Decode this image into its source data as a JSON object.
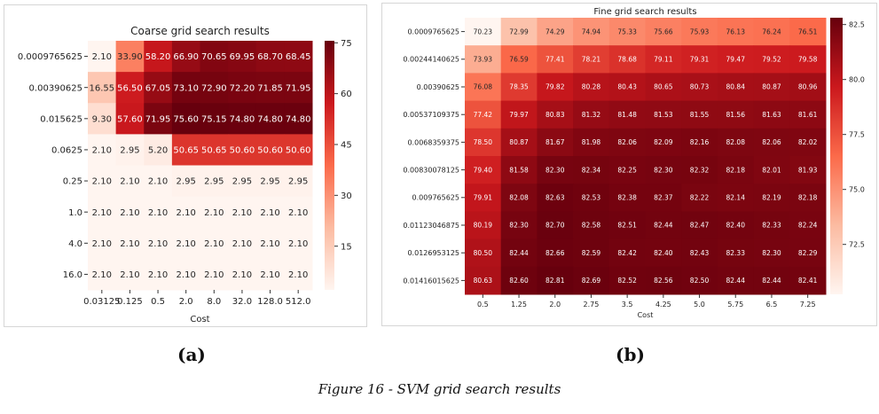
{
  "chart_data": [
    {
      "type": "heatmap",
      "title": "Coarse grid search results",
      "xlabel": "Cost",
      "ylabel": "",
      "x": [
        "0.03125",
        "0.125",
        "0.5",
        "2.0",
        "8.0",
        "32.0",
        "128.0",
        "512.0"
      ],
      "y": [
        "0.0009765625",
        "0.00390625",
        "0.015625",
        "0.0625",
        "0.25",
        "1.0",
        "4.0",
        "16.0"
      ],
      "values": [
        [
          "2.10",
          "33.90",
          "58.20",
          "66.90",
          "70.65",
          "69.95",
          "68.70",
          "68.45"
        ],
        [
          "16.55",
          "56.50",
          "67.05",
          "73.10",
          "72.90",
          "72.20",
          "71.85",
          "71.95"
        ],
        [
          "9.30",
          "57.60",
          "71.95",
          "75.60",
          "75.15",
          "74.80",
          "74.80",
          "74.80"
        ],
        [
          "2.10",
          "2.95",
          "5.20",
          "50.65",
          "50.65",
          "50.60",
          "50.60",
          "50.60"
        ],
        [
          "2.10",
          "2.10",
          "2.10",
          "2.95",
          "2.95",
          "2.95",
          "2.95",
          "2.95"
        ],
        [
          "2.10",
          "2.10",
          "2.10",
          "2.10",
          "2.10",
          "2.10",
          "2.10",
          "2.10"
        ],
        [
          "2.10",
          "2.10",
          "2.10",
          "2.10",
          "2.10",
          "2.10",
          "2.10",
          "2.10"
        ],
        [
          "2.10",
          "2.10",
          "2.10",
          "2.10",
          "2.10",
          "2.10",
          "2.10",
          "2.10"
        ]
      ],
      "colorbar_ticks": [
        "15",
        "30",
        "45",
        "60",
        "75"
      ],
      "vmin": 2.1,
      "vmax": 75.6,
      "colormap": [
        "#fff5f0",
        "#fcbba1",
        "#fb6a4a",
        "#cb181d",
        "#67000d"
      ]
    },
    {
      "type": "heatmap",
      "title": "Fine grid search results",
      "xlabel": "Cost",
      "ylabel": "",
      "x": [
        "0.5",
        "1.25",
        "2.0",
        "2.75",
        "3.5",
        "4.25",
        "5.0",
        "5.75",
        "6.5",
        "7.25"
      ],
      "y": [
        "0.0009765625",
        "0.00244140625",
        "0.00390625",
        "0.00537109375",
        "0.0068359375",
        "0.00830078125",
        "0.009765625",
        "0.01123046875",
        "0.0126953125",
        "0.01416015625"
      ],
      "values": [
        [
          "70.23",
          "72.99",
          "74.29",
          "74.94",
          "75.33",
          "75.66",
          "75.93",
          "76.13",
          "76.24",
          "76.51"
        ],
        [
          "73.93",
          "76.59",
          "77.41",
          "78.21",
          "78.68",
          "79.11",
          "79.31",
          "79.47",
          "79.52",
          "79.58"
        ],
        [
          "76.08",
          "78.35",
          "79.82",
          "80.28",
          "80.43",
          "80.65",
          "80.73",
          "80.84",
          "80.87",
          "80.96"
        ],
        [
          "77.42",
          "79.97",
          "80.83",
          "81.32",
          "81.48",
          "81.53",
          "81.55",
          "81.56",
          "81.63",
          "81.61"
        ],
        [
          "78.50",
          "80.87",
          "81.67",
          "81.98",
          "82.06",
          "82.09",
          "82.16",
          "82.08",
          "82.06",
          "82.02"
        ],
        [
          "79.40",
          "81.58",
          "82.30",
          "82.34",
          "82.25",
          "82.30",
          "82.32",
          "82.18",
          "82.01",
          "81.93"
        ],
        [
          "79.91",
          "82.08",
          "82.63",
          "82.53",
          "82.38",
          "82.37",
          "82.22",
          "82.14",
          "82.19",
          "82.18"
        ],
        [
          "80.19",
          "82.30",
          "82.70",
          "82.58",
          "82.51",
          "82.44",
          "82.47",
          "82.40",
          "82.33",
          "82.24"
        ],
        [
          "80.50",
          "82.44",
          "82.66",
          "82.59",
          "82.42",
          "82.40",
          "82.43",
          "82.33",
          "82.30",
          "82.29"
        ],
        [
          "80.63",
          "82.60",
          "82.81",
          "82.69",
          "82.52",
          "82.56",
          "82.50",
          "82.44",
          "82.44",
          "82.41"
        ]
      ],
      "colorbar_ticks": [
        "72.5",
        "75.0",
        "77.5",
        "80.0",
        "82.5"
      ],
      "vmin": 70.23,
      "vmax": 82.81,
      "colormap": [
        "#fff5f0",
        "#fcbba1",
        "#fb6a4a",
        "#cb181d",
        "#67000d"
      ]
    }
  ],
  "labels": {
    "a": "(a)",
    "b": "(b)"
  },
  "caption": "Figure 16 - SVM grid search results"
}
